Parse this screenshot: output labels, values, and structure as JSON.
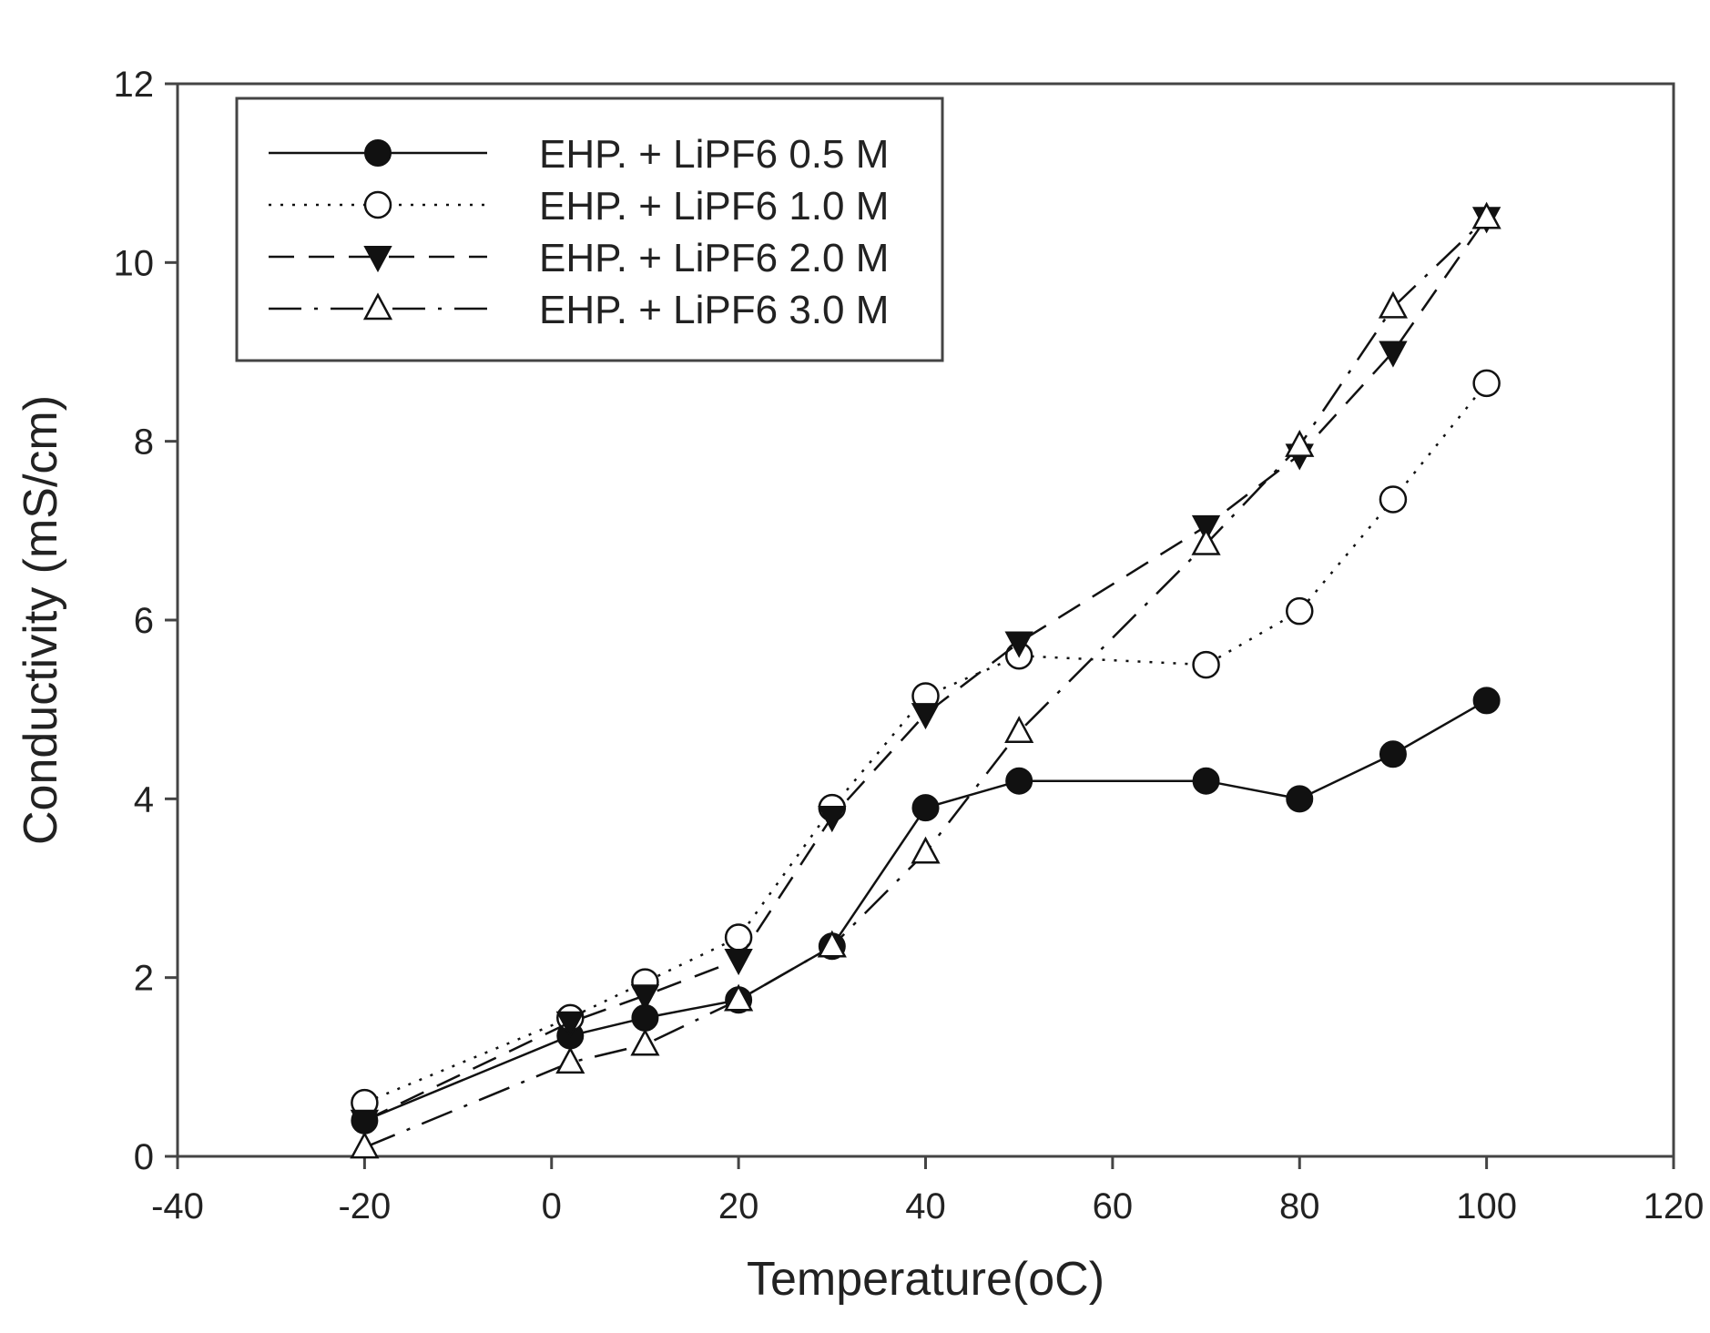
{
  "chart_data": {
    "type": "line",
    "title": "",
    "xlabel": "Temperature(oC)",
    "ylabel": "Conductivity (mS/cm)",
    "xlim": [
      -40,
      120
    ],
    "ylim": [
      0,
      12
    ],
    "xticks": [
      "-40",
      "-20",
      "0",
      "20",
      "40",
      "60",
      "80",
      "100",
      "120"
    ],
    "yticks": [
      "0",
      "2",
      "4",
      "6",
      "8",
      "10",
      "12"
    ],
    "grid": false,
    "legend_position": "top-left",
    "series": [
      {
        "name": "EHP. + LiPF6 0.5 M",
        "marker": "filled-circle",
        "line": "solid",
        "x": [
          -20,
          2,
          10,
          20,
          30,
          40,
          50,
          70,
          80,
          90,
          100
        ],
        "y": [
          0.4,
          1.35,
          1.55,
          1.75,
          2.35,
          3.9,
          4.2,
          4.2,
          4.0,
          4.5,
          5.1
        ]
      },
      {
        "name": "EHP. + LiPF6 1.0 M",
        "marker": "open-circle",
        "line": "dotted",
        "x": [
          -20,
          2,
          10,
          20,
          30,
          40,
          50,
          70,
          80,
          90,
          100
        ],
        "y": [
          0.6,
          1.55,
          1.95,
          2.45,
          3.9,
          5.15,
          5.6,
          5.5,
          6.1,
          7.35,
          8.65
        ]
      },
      {
        "name": "EHP. + LiPF6 2.0 M",
        "marker": "filled-triangle-down",
        "line": "dashed",
        "x": [
          -20,
          2,
          10,
          20,
          30,
          40,
          50,
          70,
          80,
          90,
          100
        ],
        "y": [
          0.4,
          1.5,
          1.8,
          2.2,
          3.8,
          4.95,
          5.75,
          7.05,
          7.85,
          9.0,
          10.5
        ]
      },
      {
        "name": "EHP. + LiPF6 3.0 M",
        "marker": "open-triangle-up",
        "line": "dash-dot",
        "x": [
          -20,
          2,
          10,
          20,
          30,
          40,
          50,
          70,
          80,
          90,
          100
        ],
        "y": [
          0.1,
          1.05,
          1.25,
          1.75,
          2.35,
          3.4,
          4.75,
          6.85,
          7.95,
          9.5,
          10.5
        ]
      }
    ]
  },
  "colors": {
    "ink": "#111111",
    "frame": "#444444",
    "background": "#ffffff"
  }
}
